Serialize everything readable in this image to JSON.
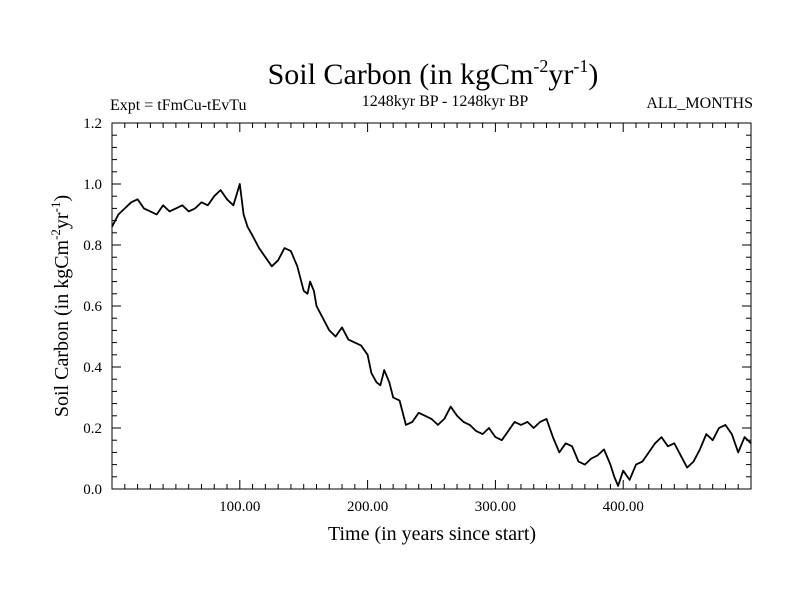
{
  "chart_data": {
    "type": "line",
    "title_main": "Soil Carbon (in kgCm",
    "title_sup1": "-2",
    "title_mid": "yr",
    "title_sup2": "-1",
    "title_end": ")",
    "expt_label": "Expt = tFmCu-tEvTu",
    "period_label": "1248kyr BP - 1248kyr BP",
    "months_label": "ALL_MONTHS",
    "xlabel": "Time (in years since start)",
    "ylabel_main": "Soil Carbon (in kgCm",
    "ylabel_sup1": "-2",
    "ylabel_mid": "yr",
    "ylabel_sup2": "-1",
    "ylabel_end": ")",
    "xlim": [
      0,
      500
    ],
    "ylim": [
      0,
      1.2
    ],
    "xticks": [
      100,
      200,
      300,
      400
    ],
    "xtick_labels": [
      "100.00",
      "200.00",
      "300.00",
      "400.00"
    ],
    "yticks": [
      0,
      0.2,
      0.4,
      0.6,
      0.8,
      1.0,
      1.2
    ],
    "ytick_labels": [
      "0.0",
      "0.2",
      "0.4",
      "0.6",
      "0.8",
      "1.0",
      "1.2"
    ],
    "line_color": "#000000",
    "series": [
      {
        "name": "Soil Carbon",
        "x": [
          0,
          5,
          10,
          15,
          20,
          25,
          30,
          35,
          40,
          45,
          50,
          55,
          60,
          65,
          70,
          75,
          80,
          85,
          90,
          95,
          100,
          103,
          106,
          110,
          115,
          120,
          125,
          130,
          135,
          140,
          145,
          150,
          153,
          155,
          158,
          160,
          165,
          170,
          175,
          180,
          185,
          190,
          195,
          200,
          203,
          207,
          210,
          213,
          217,
          220,
          225,
          230,
          235,
          240,
          245,
          250,
          255,
          260,
          265,
          270,
          275,
          280,
          285,
          290,
          295,
          300,
          305,
          310,
          315,
          320,
          325,
          330,
          335,
          340,
          345,
          350,
          355,
          360,
          365,
          370,
          375,
          380,
          385,
          390,
          393,
          396,
          400,
          405,
          410,
          415,
          420,
          425,
          430,
          435,
          440,
          445,
          450,
          455,
          460,
          465,
          470,
          475,
          480,
          485,
          490,
          495,
          500
        ],
        "y": [
          0.86,
          0.9,
          0.92,
          0.94,
          0.95,
          0.92,
          0.91,
          0.9,
          0.93,
          0.91,
          0.92,
          0.93,
          0.91,
          0.92,
          0.94,
          0.93,
          0.96,
          0.98,
          0.95,
          0.93,
          1.0,
          0.9,
          0.86,
          0.83,
          0.79,
          0.76,
          0.73,
          0.75,
          0.79,
          0.78,
          0.73,
          0.65,
          0.64,
          0.68,
          0.65,
          0.6,
          0.56,
          0.52,
          0.5,
          0.53,
          0.49,
          0.48,
          0.47,
          0.44,
          0.38,
          0.35,
          0.34,
          0.39,
          0.35,
          0.3,
          0.29,
          0.21,
          0.22,
          0.25,
          0.24,
          0.23,
          0.21,
          0.23,
          0.27,
          0.24,
          0.22,
          0.21,
          0.19,
          0.18,
          0.2,
          0.17,
          0.16,
          0.19,
          0.22,
          0.21,
          0.22,
          0.2,
          0.22,
          0.23,
          0.17,
          0.12,
          0.15,
          0.14,
          0.09,
          0.08,
          0.1,
          0.11,
          0.13,
          0.08,
          0.04,
          0.01,
          0.06,
          0.03,
          0.08,
          0.09,
          0.12,
          0.15,
          0.17,
          0.14,
          0.15,
          0.11,
          0.07,
          0.09,
          0.13,
          0.18,
          0.16,
          0.2,
          0.21,
          0.18,
          0.12,
          0.17,
          0.15
        ]
      }
    ]
  }
}
